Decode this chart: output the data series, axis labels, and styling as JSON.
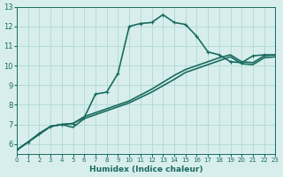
{
  "xlabel": "Humidex (Indice chaleur)",
  "ylabel": "",
  "xlim": [
    0,
    23
  ],
  "ylim": [
    5.5,
    13
  ],
  "yticks": [
    6,
    7,
    8,
    9,
    10,
    11,
    12,
    13
  ],
  "xticks": [
    0,
    1,
    2,
    3,
    4,
    5,
    6,
    7,
    8,
    9,
    10,
    11,
    12,
    13,
    14,
    15,
    16,
    17,
    18,
    19,
    20,
    21,
    22,
    23
  ],
  "bg_color": "#d7eeed",
  "grid_color": "#b0d8d5",
  "line_color": "#1a6b60",
  "line1_x": [
    0,
    1,
    2,
    3,
    4,
    5,
    6,
    7,
    8,
    9,
    10,
    11,
    12,
    13,
    14,
    15,
    16,
    17,
    18,
    19,
    20,
    21,
    22,
    23
  ],
  "line1_y": [
    5.7,
    6.1,
    6.55,
    6.9,
    7.0,
    7.05,
    7.35,
    8.55,
    8.65,
    9.6,
    12.0,
    12.15,
    12.2,
    12.6,
    12.2,
    12.1,
    11.5,
    10.7,
    10.55,
    10.2,
    10.15,
    10.5,
    10.55,
    10.55
  ],
  "line2_x": [
    0,
    3,
    4,
    5,
    6,
    8,
    10,
    12,
    14,
    15,
    18,
    19,
    20,
    21,
    22,
    23
  ],
  "line2_y": [
    5.7,
    6.9,
    7.0,
    7.05,
    7.4,
    7.8,
    8.2,
    8.8,
    9.5,
    9.8,
    10.4,
    10.55,
    10.2,
    10.15,
    10.5,
    10.55
  ],
  "line3_x": [
    0,
    3,
    4,
    5,
    6,
    8,
    10,
    12,
    14,
    15,
    18,
    19,
    20,
    21,
    22,
    23
  ],
  "line3_y": [
    5.7,
    6.9,
    7.0,
    6.85,
    7.3,
    7.7,
    8.1,
    8.65,
    9.3,
    9.65,
    10.25,
    10.45,
    10.1,
    10.05,
    10.4,
    10.45
  ],
  "marker_size": 3,
  "linewidth": 1.2
}
